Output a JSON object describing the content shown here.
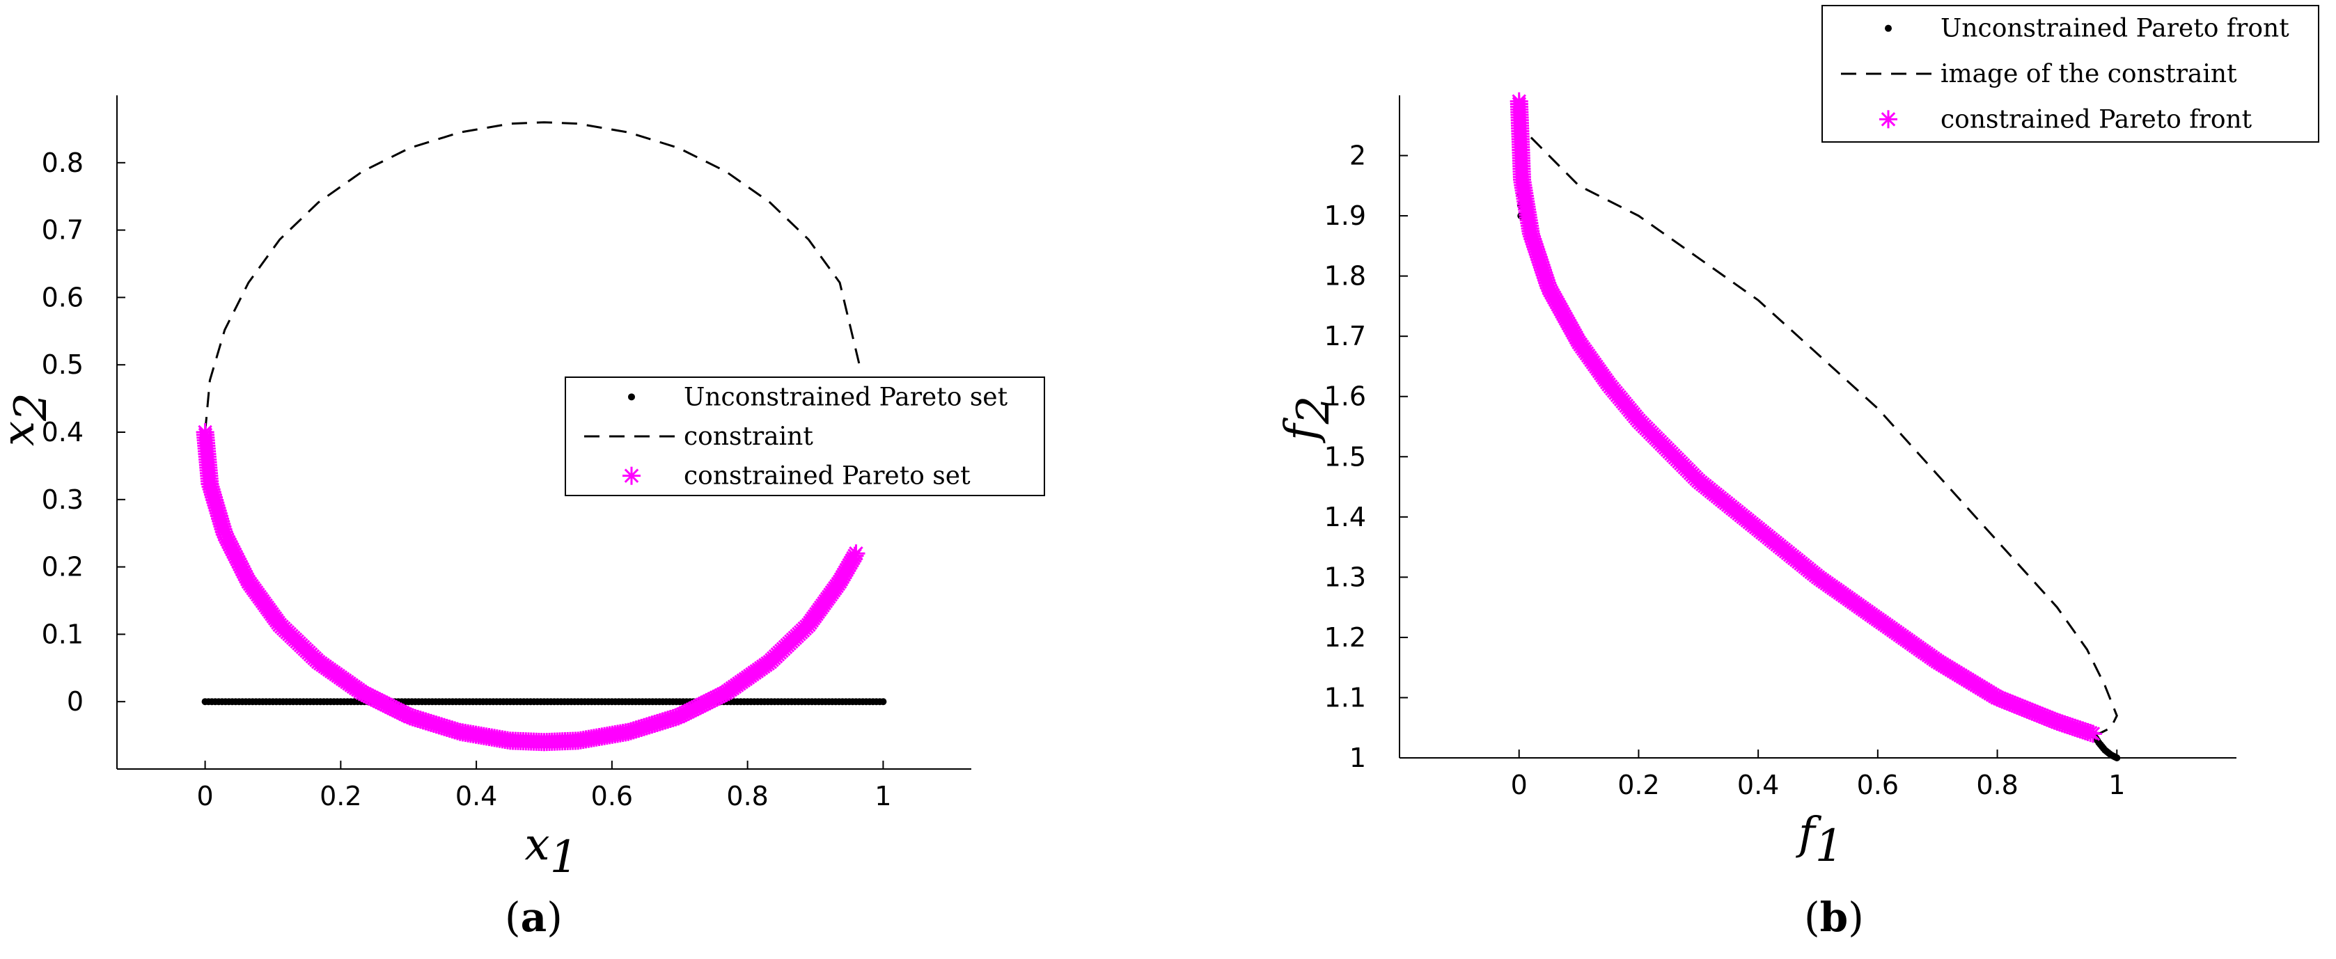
{
  "chart_data": [
    {
      "type": "scatter",
      "panel_label": "a",
      "xlabel": {
        "base": "x",
        "sub": "1"
      },
      "ylabel": {
        "base": "x",
        "sub": "2"
      },
      "xlim": [
        -0.13,
        1.13
      ],
      "ylim": [
        -0.1,
        0.9
      ],
      "xticks": [
        0,
        0.2,
        0.4,
        0.6,
        0.8,
        1
      ],
      "xtick_labels": [
        "0",
        "0.2",
        "0.4",
        "0.6",
        "0.8",
        "1"
      ],
      "yticks": [
        0,
        0.1,
        0.2,
        0.3,
        0.4,
        0.5,
        0.6,
        0.7,
        0.8
      ],
      "ytick_labels": [
        "0",
        "0.1",
        "0.2",
        "0.3",
        "0.4",
        "0.5",
        "0.6",
        "0.7",
        "0.8"
      ],
      "legend_position": "center-right",
      "series": [
        {
          "name": "Unconstrained Pareto set",
          "style": "dots",
          "color": "#000000",
          "x": [
            0,
            0.02,
            0.04,
            0.06,
            0.08,
            0.1,
            0.12,
            0.14,
            0.16,
            0.18,
            0.2,
            0.22,
            0.24,
            0.26,
            0.28,
            0.3,
            0.32,
            0.34,
            0.36,
            0.38,
            0.4,
            0.42,
            0.44,
            0.46,
            0.48,
            0.5,
            0.52,
            0.54,
            0.56,
            0.58,
            0.6,
            0.62,
            0.64,
            0.66,
            0.68,
            0.7,
            0.72,
            0.74,
            0.76,
            0.78,
            0.8,
            0.82,
            0.84,
            0.86,
            0.88,
            0.9,
            0.92,
            0.94,
            0.96,
            0.98,
            1
          ],
          "y": [
            0,
            0,
            0,
            0,
            0,
            0,
            0,
            0,
            0,
            0,
            0,
            0,
            0,
            0,
            0,
            0,
            0,
            0,
            0,
            0,
            0,
            0,
            0,
            0,
            0,
            0,
            0,
            0,
            0,
            0,
            0,
            0,
            0,
            0,
            0,
            0,
            0,
            0,
            0,
            0,
            0,
            0,
            0,
            0,
            0,
            0,
            0,
            0,
            0,
            0,
            0
          ]
        },
        {
          "name": "constraint",
          "style": "dashed",
          "color": "#000000",
          "x": [
            0.0,
            0.007,
            0.029,
            0.064,
            0.11,
            0.167,
            0.232,
            0.302,
            0.376,
            0.45,
            0.5,
            0.55,
            0.624,
            0.698,
            0.768,
            0.833,
            0.89,
            0.936,
            0.965
          ],
          "y": [
            0.4,
            0.477,
            0.552,
            0.622,
            0.686,
            0.741,
            0.787,
            0.822,
            0.845,
            0.858,
            0.86,
            0.858,
            0.845,
            0.822,
            0.787,
            0.741,
            0.686,
            0.622,
            0.5
          ]
        },
        {
          "name": "constrained Pareto set",
          "style": "stars",
          "color": "#ff00ff",
          "x": [
            0.0,
            0.007,
            0.029,
            0.064,
            0.11,
            0.167,
            0.232,
            0.302,
            0.376,
            0.45,
            0.5,
            0.55,
            0.624,
            0.698,
            0.768,
            0.833,
            0.89,
            0.936,
            0.96
          ],
          "y": [
            0.4,
            0.323,
            0.248,
            0.178,
            0.114,
            0.059,
            0.013,
            -0.022,
            -0.045,
            -0.058,
            -0.06,
            -0.058,
            -0.045,
            -0.022,
            0.013,
            0.059,
            0.114,
            0.178,
            0.22
          ]
        }
      ]
    },
    {
      "type": "scatter",
      "panel_label": "b",
      "xlabel": {
        "base": "f",
        "sub": "1"
      },
      "ylabel": {
        "base": "f",
        "sub": "2"
      },
      "xlim": [
        -0.2,
        1.2
      ],
      "ylim": [
        1,
        2.1
      ],
      "xticks": [
        0,
        0.2,
        0.4,
        0.6,
        0.8,
        1
      ],
      "xtick_labels": [
        "0",
        "0.2",
        "0.4",
        "0.6",
        "0.8",
        "1"
      ],
      "yticks": [
        1,
        1.1,
        1.2,
        1.3,
        1.4,
        1.5,
        1.6,
        1.7,
        1.8,
        1.9,
        2
      ],
      "ytick_labels": [
        "1",
        "1.1",
        "1.2",
        "1.3",
        "1.4",
        "1.5",
        "1.6",
        "1.7",
        "1.8",
        "1.9",
        "2"
      ],
      "legend_position": "top-right",
      "series": [
        {
          "name": "Unconstrained Pareto front",
          "style": "dots",
          "color": "#000000",
          "x": [
            0.96,
            0.97,
            0.98,
            0.99,
            1.0,
            0.0,
            0.001,
            0.003
          ],
          "y": [
            1.04,
            1.025,
            1.013,
            1.005,
            1.0,
            2.05,
            1.97,
            1.9
          ]
        },
        {
          "name": "image of the constraint",
          "style": "dashed",
          "color": "#000000",
          "x": [
            0.02,
            0.1,
            0.2,
            0.3,
            0.4,
            0.5,
            0.6,
            0.7,
            0.8,
            0.9,
            0.95,
            0.98,
            1.0,
            0.99,
            0.97
          ],
          "y": [
            2.03,
            1.95,
            1.9,
            1.83,
            1.76,
            1.67,
            1.58,
            1.47,
            1.36,
            1.25,
            1.18,
            1.12,
            1.07,
            1.05,
            1.04
          ]
        },
        {
          "name": "constrained Pareto front",
          "style": "stars",
          "color": "#ff00ff",
          "x": [
            0.0,
            0.005,
            0.02,
            0.05,
            0.1,
            0.15,
            0.2,
            0.3,
            0.4,
            0.5,
            0.6,
            0.7,
            0.8,
            0.9,
            0.96
          ],
          "y": [
            2.09,
            1.96,
            1.87,
            1.78,
            1.69,
            1.62,
            1.56,
            1.46,
            1.38,
            1.3,
            1.23,
            1.16,
            1.1,
            1.06,
            1.04
          ]
        }
      ]
    }
  ]
}
